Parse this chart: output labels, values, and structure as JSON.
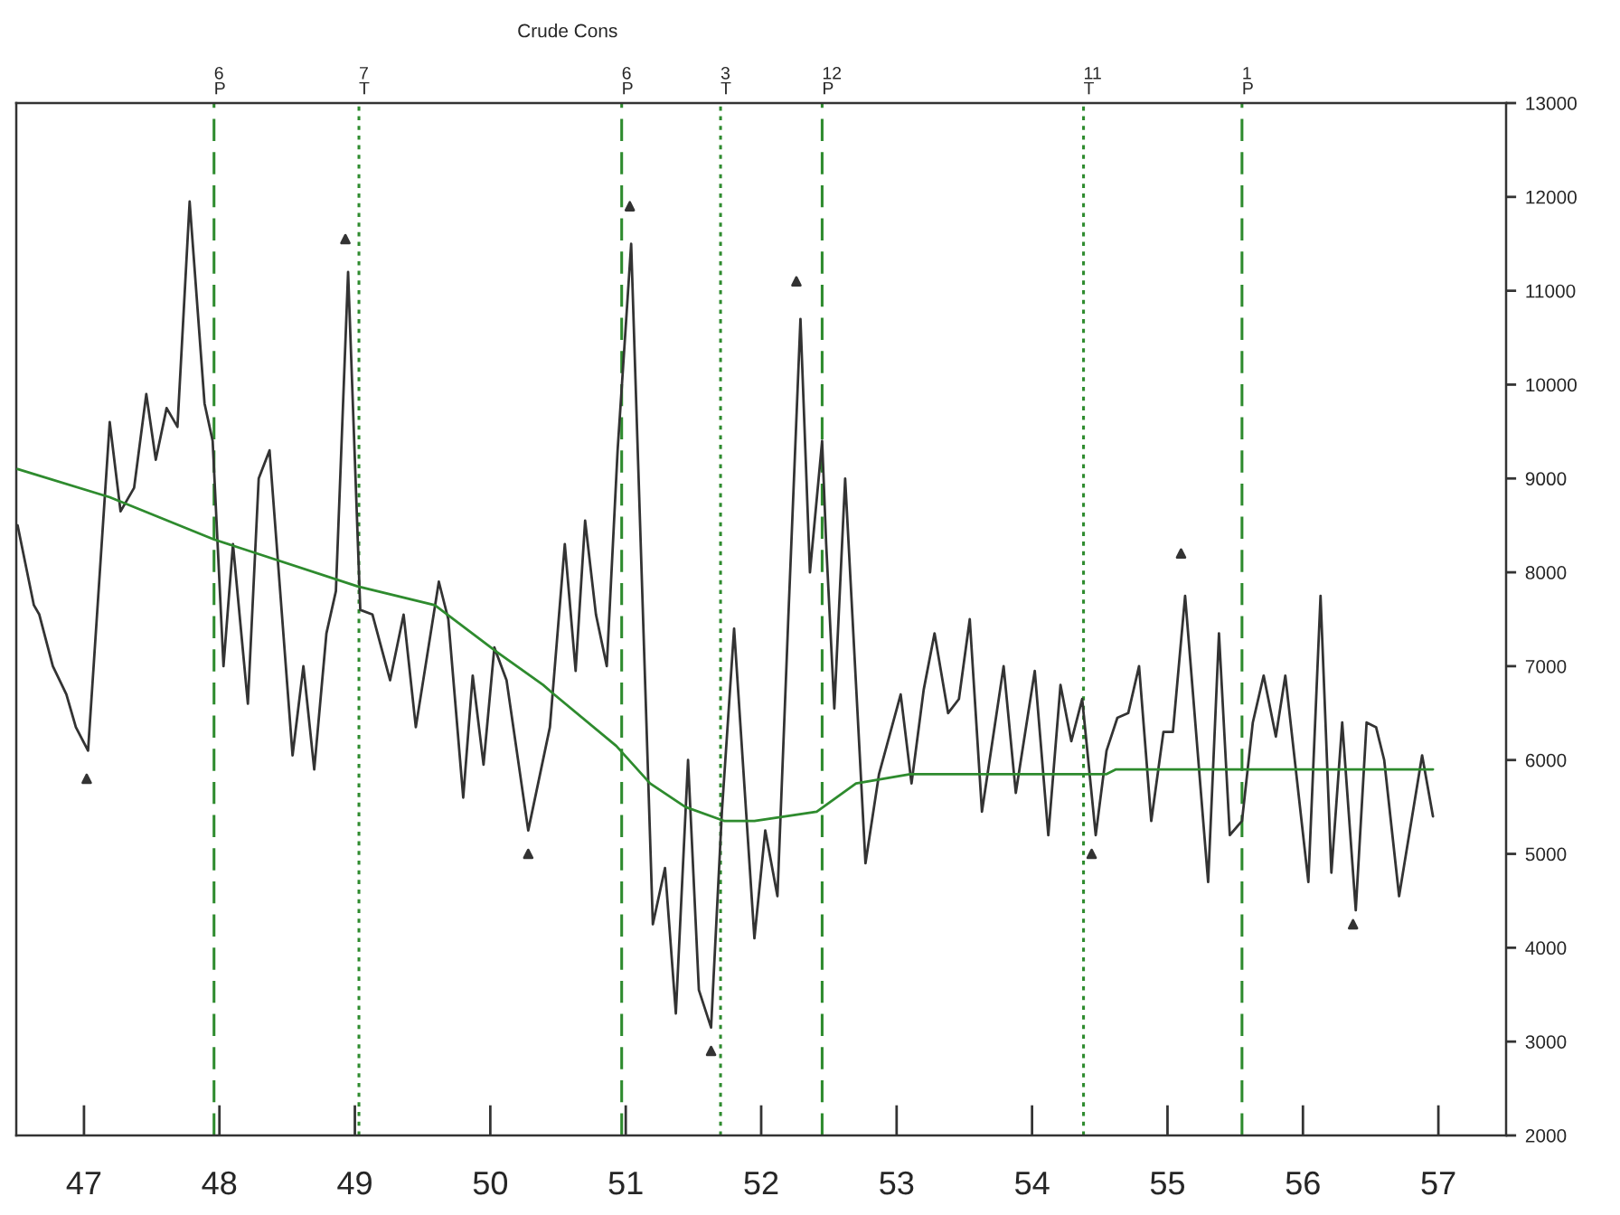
{
  "chart_data": {
    "type": "line",
    "title": "Crude Cons",
    "xlim": [
      46.5,
      57.5
    ],
    "ylim": [
      2000,
      13000
    ],
    "xticks": [
      47,
      48,
      49,
      50,
      51,
      52,
      53,
      54,
      55,
      56,
      57
    ],
    "yticks": [
      2000,
      3000,
      4000,
      5000,
      6000,
      7000,
      8000,
      9000,
      10000,
      11000,
      12000,
      13000
    ],
    "grid": false,
    "legend": false,
    "series": [
      {
        "color": "#333333",
        "line_style": "solid",
        "marker": "none",
        "x": [
          46.51,
          46.63,
          46.67,
          46.77,
          46.87,
          46.94,
          47.03,
          47.19,
          47.27,
          47.37,
          47.46,
          47.53,
          47.61,
          47.69,
          47.78,
          47.89,
          47.95,
          48.03,
          48.1,
          48.21,
          48.29,
          48.37,
          48.54,
          48.62,
          48.7,
          48.79,
          48.86,
          48.95,
          49.04,
          49.13,
          49.26,
          49.36,
          49.45,
          49.62,
          49.69,
          49.8,
          49.87,
          49.95,
          50.03,
          50.12,
          50.28,
          50.44,
          50.55,
          50.63,
          50.7,
          50.78,
          50.86,
          50.94,
          51.04,
          51.2,
          51.29,
          51.37,
          51.46,
          51.54,
          51.63,
          51.71,
          51.8,
          51.95,
          52.03,
          52.12,
          52.2,
          52.29,
          52.36,
          52.45,
          52.48,
          52.54,
          52.62,
          52.77,
          52.87,
          53.03,
          53.11,
          53.2,
          53.28,
          53.38,
          53.46,
          53.54,
          53.63,
          53.79,
          53.88,
          54.02,
          54.12,
          54.21,
          54.29,
          54.37,
          54.47,
          54.55,
          54.63,
          54.71,
          54.79,
          54.88,
          54.97,
          55.04,
          55.13,
          55.3,
          55.38,
          55.46,
          55.55,
          55.63,
          55.71,
          55.8,
          55.87,
          56.04,
          56.13,
          56.21,
          56.29,
          56.39,
          56.47,
          56.54,
          56.6,
          56.71,
          56.88,
          56.96
        ],
        "values": [
          8500,
          7650,
          7550,
          7000,
          6700,
          6350,
          6100,
          9600,
          8650,
          8900,
          9900,
          9200,
          9750,
          9550,
          11950,
          9800,
          9400,
          7000,
          8300,
          6600,
          9000,
          9300,
          6050,
          7000,
          5900,
          7350,
          7800,
          11200,
          7600,
          7550,
          6850,
          7550,
          6350,
          7900,
          7500,
          5600,
          6900,
          5950,
          7200,
          6850,
          5250,
          6350,
          8300,
          6950,
          8550,
          7550,
          7000,
          9300,
          11500,
          4250,
          4850,
          3300,
          6000,
          3550,
          3150,
          5450,
          7400,
          4100,
          5250,
          4550,
          7500,
          10700,
          8000,
          9400,
          8300,
          6550,
          9000,
          4900,
          5850,
          6700,
          5750,
          6750,
          7350,
          6500,
          6650,
          7500,
          5450,
          7000,
          5650,
          6950,
          5200,
          6800,
          6200,
          6650,
          5200,
          6100,
          6450,
          6500,
          7000,
          5350,
          6300,
          6300,
          7750,
          4700,
          7350,
          5200,
          5350,
          6400,
          6900,
          6250,
          6900,
          4700,
          7750,
          4800,
          6400,
          4400,
          6400,
          6350,
          6000,
          4550,
          6050,
          5400
        ]
      },
      {
        "color": "#2e8b2e",
        "line_style": "solid",
        "marker": "none",
        "x": [
          46.51,
          47.19,
          47.96,
          49.02,
          49.59,
          50.05,
          50.39,
          50.47,
          50.93,
          51.18,
          51.44,
          51.73,
          51.95,
          52.41,
          52.7,
          53.1,
          53.56,
          54.13,
          54.55,
          54.62,
          56.96
        ],
        "values": [
          9100,
          8800,
          8350,
          7850,
          7650,
          7150,
          6800,
          6700,
          6150,
          5750,
          5500,
          5350,
          5350,
          5450,
          5750,
          5850,
          5850,
          5850,
          5850,
          5900,
          5900
        ]
      },
      {
        "type": "scatter",
        "color": "#333333",
        "marker": "triangle",
        "x": [
          47.02,
          48.93,
          50.28,
          51.03,
          51.63,
          52.26,
          54.44,
          55.1,
          56.37
        ],
        "values": [
          5800,
          11550,
          5000,
          11900,
          2900,
          11100,
          5000,
          8200,
          4250
        ]
      }
    ],
    "ref_lines": [
      {
        "axis": "x",
        "value": 47.96,
        "label": "6\nP",
        "color": "#2e8b2e",
        "line_style": "dashed"
      },
      {
        "axis": "x",
        "value": 49.03,
        "label": "7\nT",
        "color": "#2e8b2e",
        "line_style": "dotted"
      },
      {
        "axis": "x",
        "value": 50.97,
        "label": "6\nP",
        "color": "#2e8b2e",
        "line_style": "dashed"
      },
      {
        "axis": "x",
        "value": 51.7,
        "label": "3\nT",
        "color": "#2e8b2e",
        "line_style": "dotted"
      },
      {
        "axis": "x",
        "value": 52.45,
        "label": "12\nP",
        "color": "#2e8b2e",
        "line_style": "dashed"
      },
      {
        "axis": "x",
        "value": 54.38,
        "label": "11\nT",
        "color": "#2e8b2e",
        "line_style": "dotted"
      },
      {
        "axis": "x",
        "value": 55.55,
        "label": "1\nP",
        "color": "#2e8b2e",
        "line_style": "dashed"
      }
    ]
  }
}
